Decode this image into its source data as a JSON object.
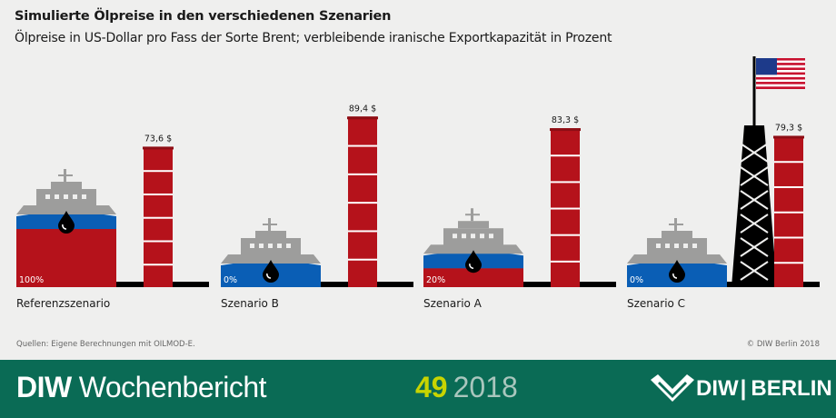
{
  "header": {
    "title": "Simulierte Ölpreise in den verschiedenen Szenarien",
    "subtitle": "Ölpreise in US-Dollar pro Fass der Sorte Brent; verbleibende iranische Exportkapazität in Prozent"
  },
  "chart_data": {
    "type": "bar",
    "title": "Simulierte Ölpreise in den verschiedenen Szenarien",
    "subtitle": "Ölpreise in US-Dollar pro Fass der Sorte Brent; verbleibende iranische Exportkapazität in Prozent",
    "categories": [
      "Referenzszenario",
      "Szenario B",
      "Szenario A",
      "Szenario C"
    ],
    "series": [
      {
        "values": [
          73.6,
          89.4,
          83.3,
          79.3
        ],
        "labels": [
          "73,6 $",
          "89,4 $",
          "83,3 $",
          "79,3 $"
        ]
      },
      {
        "values": [
          100,
          0,
          20,
          0
        ],
        "labels": [
          "100%",
          "0%",
          "20%",
          "0%"
        ]
      }
    ],
    "colors": {
      "barrel": "#b5121b",
      "ship_deck": "#9d9d9c",
      "ship_hull": "#0a5eb5",
      "tower": "#000000",
      "oil_drop": "#000000"
    },
    "icons": [
      "oil-tanker-icon",
      "oil-drop-icon",
      "oil-barrel-icon",
      "oil-derrick-icon",
      "us-flag-icon"
    ]
  },
  "footer": {
    "source": "Quellen: Eigene Berechnungen mit OILMOD-E.",
    "copyright": "© DIW Berlin 2018",
    "brand_bold": "DIW",
    "brand_rest": "Wochenbericht",
    "issue_number": "49",
    "issue_year": "2018",
    "logo_left": "DIW",
    "logo_right": "BERLIN"
  }
}
